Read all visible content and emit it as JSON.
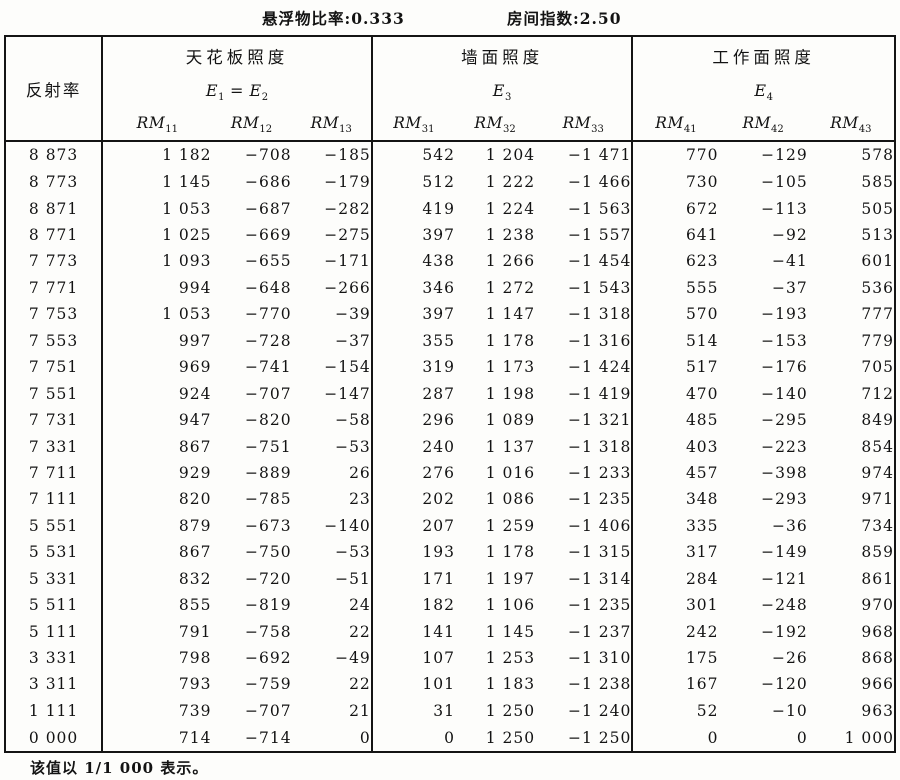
{
  "meta": {
    "suspension_ratio_text": "悬浮物比率:0.333",
    "room_index_text": "房间指数:2.50"
  },
  "table": {
    "row_header": "反射率",
    "groups": [
      {
        "title": "天花板照度",
        "formula_parts": [
          [
            "E",
            "1"
          ],
          [
            " = ",
            ""
          ],
          [
            "E",
            "2"
          ]
        ],
        "cols": [
          [
            "RM",
            "11"
          ],
          [
            "RM",
            "12"
          ],
          [
            "RM",
            "13"
          ]
        ]
      },
      {
        "title": "墙面照度",
        "formula_parts": [
          [
            "E",
            "3"
          ]
        ],
        "cols": [
          [
            "RM",
            "31"
          ],
          [
            "RM",
            "32"
          ],
          [
            "RM",
            "33"
          ]
        ]
      },
      {
        "title": "工作面照度",
        "formula_parts": [
          [
            "E",
            "4"
          ]
        ],
        "cols": [
          [
            "RM",
            "41"
          ],
          [
            "RM",
            "42"
          ],
          [
            "RM",
            "43"
          ]
        ]
      }
    ],
    "rows": [
      {
        "reflectance": "8 873",
        "values": [
          "1 182",
          "−708",
          "−185",
          "542",
          "1 204",
          "−1 471",
          "770",
          "−129",
          "578"
        ]
      },
      {
        "reflectance": "8 773",
        "values": [
          "1 145",
          "−686",
          "−179",
          "512",
          "1 222",
          "−1 466",
          "730",
          "−105",
          "585"
        ]
      },
      {
        "reflectance": "8 871",
        "values": [
          "1 053",
          "−687",
          "−282",
          "419",
          "1 224",
          "−1 563",
          "672",
          "−113",
          "505"
        ]
      },
      {
        "reflectance": "8 771",
        "values": [
          "1 025",
          "−669",
          "−275",
          "397",
          "1 238",
          "−1 557",
          "641",
          "−92",
          "513"
        ]
      },
      {
        "reflectance": "7 773",
        "values": [
          "1 093",
          "−655",
          "−171",
          "438",
          "1 266",
          "−1 454",
          "623",
          "−41",
          "601"
        ]
      },
      {
        "reflectance": "7 771",
        "values": [
          "994",
          "−648",
          "−266",
          "346",
          "1 272",
          "−1 543",
          "555",
          "−37",
          "536"
        ]
      },
      {
        "reflectance": "7 753",
        "values": [
          "1 053",
          "−770",
          "−39",
          "397",
          "1 147",
          "−1 318",
          "570",
          "−193",
          "777"
        ]
      },
      {
        "reflectance": "7 553",
        "values": [
          "997",
          "−728",
          "−37",
          "355",
          "1 178",
          "−1 316",
          "514",
          "−153",
          "779"
        ]
      },
      {
        "reflectance": "7 751",
        "values": [
          "969",
          "−741",
          "−154",
          "319",
          "1 173",
          "−1 424",
          "517",
          "−176",
          "705"
        ]
      },
      {
        "reflectance": "7 551",
        "values": [
          "924",
          "−707",
          "−147",
          "287",
          "1 198",
          "−1 419",
          "470",
          "−140",
          "712"
        ]
      },
      {
        "reflectance": "7 731",
        "values": [
          "947",
          "−820",
          "−58",
          "296",
          "1 089",
          "−1 321",
          "485",
          "−295",
          "849"
        ]
      },
      {
        "reflectance": "7 331",
        "values": [
          "867",
          "−751",
          "−53",
          "240",
          "1 137",
          "−1 318",
          "403",
          "−223",
          "854"
        ]
      },
      {
        "reflectance": "7 711",
        "values": [
          "929",
          "−889",
          "26",
          "276",
          "1 016",
          "−1 233",
          "457",
          "−398",
          "974"
        ]
      },
      {
        "reflectance": "7 111",
        "values": [
          "820",
          "−785",
          "23",
          "202",
          "1 086",
          "−1 235",
          "348",
          "−293",
          "971"
        ]
      },
      {
        "reflectance": "5 551",
        "values": [
          "879",
          "−673",
          "−140",
          "207",
          "1 259",
          "−1 406",
          "335",
          "−36",
          "734"
        ]
      },
      {
        "reflectance": "5 531",
        "values": [
          "867",
          "−750",
          "−53",
          "193",
          "1 178",
          "−1 315",
          "317",
          "−149",
          "859"
        ]
      },
      {
        "reflectance": "5 331",
        "values": [
          "832",
          "−720",
          "−51",
          "171",
          "1 197",
          "−1 314",
          "284",
          "−121",
          "861"
        ]
      },
      {
        "reflectance": "5 511",
        "values": [
          "855",
          "−819",
          "24",
          "182",
          "1 106",
          "−1 235",
          "301",
          "−248",
          "970"
        ]
      },
      {
        "reflectance": "5 111",
        "values": [
          "791",
          "−758",
          "22",
          "141",
          "1 145",
          "−1 237",
          "242",
          "−192",
          "968"
        ]
      },
      {
        "reflectance": "3 331",
        "values": [
          "798",
          "−692",
          "−49",
          "107",
          "1 253",
          "−1 310",
          "175",
          "−26",
          "868"
        ]
      },
      {
        "reflectance": "3 311",
        "values": [
          "793",
          "−759",
          "22",
          "101",
          "1 183",
          "−1 238",
          "167",
          "−120",
          "966"
        ]
      },
      {
        "reflectance": "1 111",
        "values": [
          "739",
          "−707",
          "21",
          "31",
          "1 250",
          "−1 240",
          "52",
          "−10",
          "963"
        ]
      },
      {
        "reflectance": "0 000",
        "values": [
          "714",
          "−714",
          "0",
          "0",
          "1 250",
          "−1 250",
          "0",
          "0",
          "1 000"
        ]
      }
    ]
  },
  "footnote": "该值以 1/1 000 表示。"
}
